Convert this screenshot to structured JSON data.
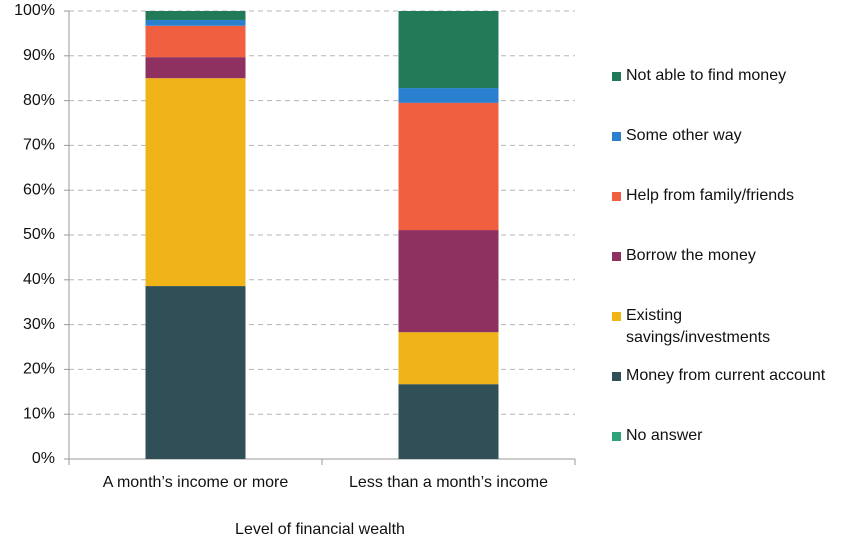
{
  "chart_data": {
    "type": "stacked_bar",
    "x_label": "Level of financial wealth",
    "categories": [
      "A month’s income or more",
      "Less than a month’s income"
    ],
    "series": [
      {
        "name": "No answer",
        "color": "#2fa37a",
        "values": [
          0,
          0
        ]
      },
      {
        "name": "Money from current account",
        "color": "#304f56",
        "values": [
          38.6,
          16.7
        ]
      },
      {
        "name": "Existing savings/investments",
        "color": "#f0b418",
        "values": [
          46.4,
          11.6
        ]
      },
      {
        "name": "Borrow the money",
        "color": "#8e3060",
        "values": [
          4.7,
          22.8
        ]
      },
      {
        "name": "Help from family/friends",
        "color": "#ef5f40",
        "values": [
          7.0,
          28.4
        ]
      },
      {
        "name": "Some other way",
        "color": "#2a7fcf",
        "values": [
          1.3,
          3.3
        ]
      },
      {
        "name": "Not able to find money",
        "color": "#237a58",
        "values": [
          2.0,
          17.2
        ]
      }
    ],
    "ylim": [
      0,
      100
    ],
    "yticks": [
      {
        "value": 0,
        "label": "0%"
      },
      {
        "value": 10,
        "label": "10%"
      },
      {
        "value": 20,
        "label": "20%"
      },
      {
        "value": 30,
        "label": "30%"
      },
      {
        "value": 40,
        "label": "40%"
      },
      {
        "value": 50,
        "label": "50%"
      },
      {
        "value": 60,
        "label": "60%"
      },
      {
        "value": 70,
        "label": "70%"
      },
      {
        "value": 80,
        "label": "80%"
      },
      {
        "value": 90,
        "label": "90%"
      },
      {
        "value": 100,
        "label": "100%"
      }
    ],
    "grid": true,
    "legend": "right"
  }
}
